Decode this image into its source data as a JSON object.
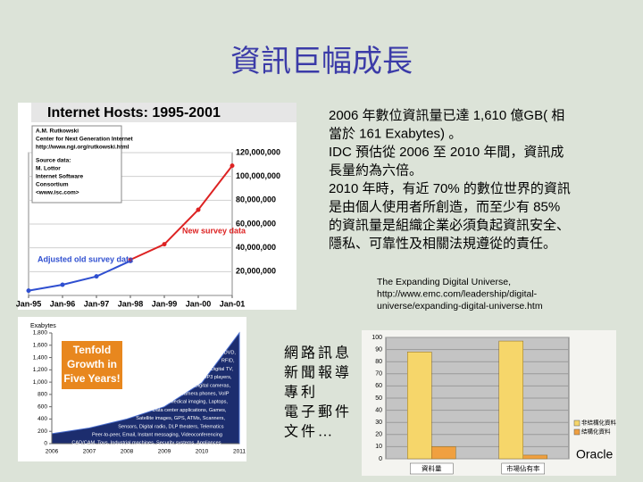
{
  "slide": {
    "title": "資訊巨幅成長",
    "body": [
      "2006 年數位資訊量已達 1,610 億GB( 相",
      "當於 161 Exabytes) 。",
      "IDC 預估從 2006 至 2010 年間，資訊成",
      "長量約為六倍。",
      "2010 年時，有近 70% 的數位世界的資訊",
      "是由個人使用者所創造，而至少有 85%",
      "的資訊量是組織企業必須負起資訊安全、",
      "隱私、可靠性及相關法規遵從的責任。"
    ],
    "citation": [
      "The Expanding Digital Universe,",
      "http://www.emc.com/leadership/digital-",
      "universe/expanding-digital-universe.htm"
    ],
    "list": [
      "網路訊息",
      "新聞報導",
      "專利",
      "電子郵件",
      "文件…"
    ],
    "footer": "Oracle"
  },
  "chart_data": [
    {
      "type": "line",
      "title": "Internet Hosts: 1995-2001",
      "categories": [
        "Jan-95",
        "Jan-96",
        "Jan-97",
        "Jan-98",
        "Jan-99",
        "Jan-00",
        "Jan-01"
      ],
      "series": [
        {
          "name": "Adjusted old survey data",
          "color": "#2f4fd0",
          "values": [
            4000000,
            9000000,
            16000000,
            29000000,
            null,
            null,
            null
          ]
        },
        {
          "name": "New survey data",
          "color": "#dd2222",
          "values": [
            null,
            null,
            null,
            30000000,
            43000000,
            72000000,
            109000000
          ]
        }
      ],
      "ylim": [
        0,
        120000000
      ],
      "yticks": [
        {
          "value": 20000000,
          "label": "20,000,000"
        },
        {
          "value": 40000000,
          "label": "40,000,000"
        },
        {
          "value": 60000000,
          "label": "60,000,000"
        },
        {
          "value": 80000000,
          "label": "80,000,000"
        },
        {
          "value": 100000000,
          "label": "100,000,000"
        },
        {
          "value": 120000000,
          "label": "120,000,000"
        }
      ],
      "grid": true,
      "annotations": [
        "A.M. Rutkowski",
        "Center for Next Generation Internet",
        "http://www.ngi.org/rutkowski.html",
        "Source data:",
        "M. Lottor",
        "Internet Software",
        "Consortium",
        "<www.isc.com>"
      ]
    },
    {
      "type": "area",
      "y_label": "Exabytes",
      "categories": [
        "2006",
        "2007",
        "2008",
        "2009",
        "2010",
        "2011"
      ],
      "values": [
        161,
        255,
        400,
        600,
        988,
        1800
      ],
      "color": "#1c2d6e",
      "ylim": [
        0,
        1800
      ],
      "yticks": [
        0,
        200,
        400,
        600,
        800,
        {
          "value": 1000,
          "label": "1,000"
        },
        {
          "value": 1200,
          "label": "1,200"
        },
        {
          "value": 1400,
          "label": "1,400"
        },
        {
          "value": 1600,
          "label": "1,600"
        },
        {
          "value": 1800,
          "label": "1,800"
        }
      ],
      "headline": [
        "Tenfold",
        "Growth in",
        "Five Years!"
      ],
      "labels": [
        "DVD,",
        "RFID,",
        "Digital TV,",
        "MP3 players,",
        "Digital cameras,",
        "Camera phones, VoIP",
        "Medical imaging, Laptops,",
        "Data center applications, Games,",
        "Satellite images, GPS, ATMs, Scanners,",
        "Sensors, Digital radio, DLP theaters, Telematics",
        "Peer-to-peer, Email, Instant messaging, Videoconferencing",
        "CAD/CAM, Toys, Industrial machines, Security systems, Appliances"
      ]
    },
    {
      "type": "bar",
      "categories": [
        "資料量",
        "市場佔有率"
      ],
      "series": [
        {
          "name": "非結構化資料",
          "color": "#f6d66a",
          "values": [
            88,
            97
          ]
        },
        {
          "name": "結構化資料",
          "color": "#f0a040",
          "values": [
            10,
            3
          ]
        }
      ],
      "ylim": [
        0,
        100
      ],
      "yticks": [
        0,
        10,
        20,
        30,
        40,
        50,
        60,
        70,
        80,
        90,
        100
      ]
    }
  ]
}
